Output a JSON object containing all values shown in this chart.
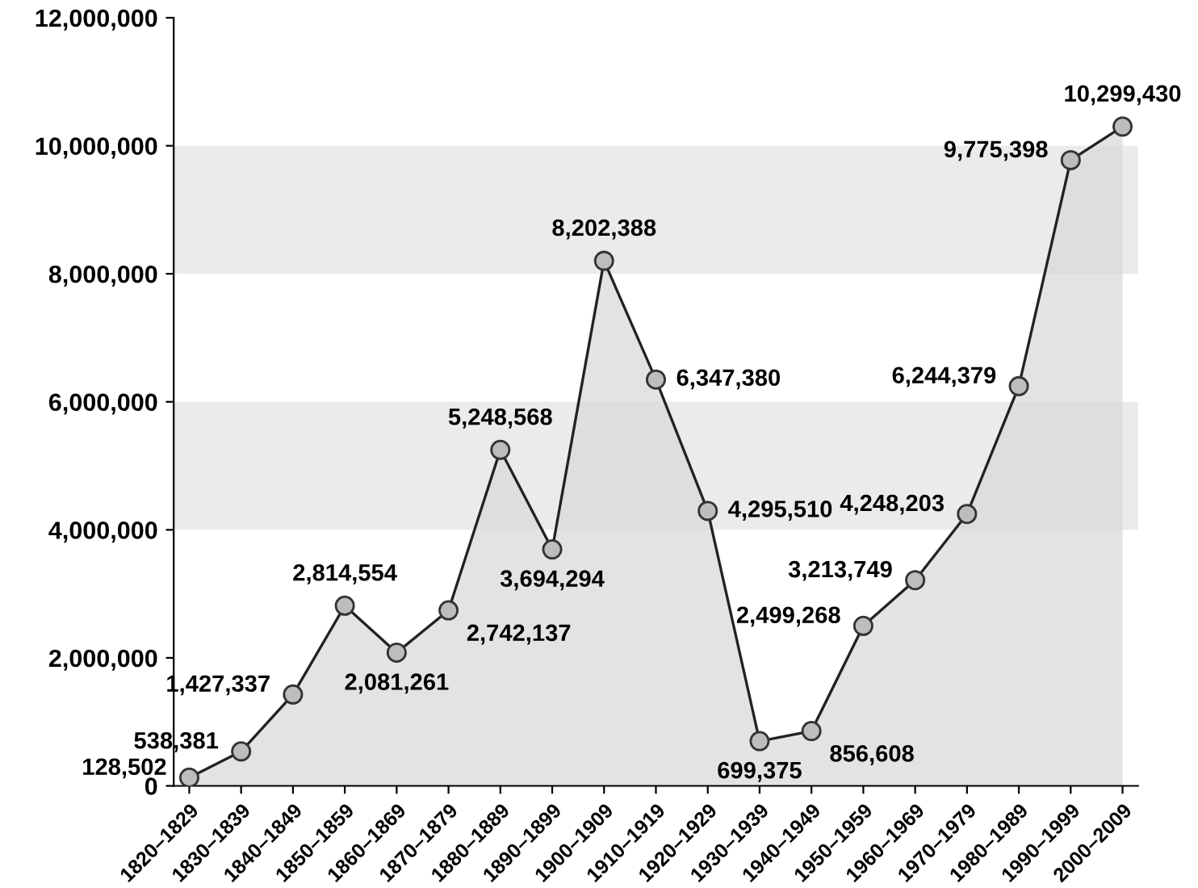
{
  "chart_data": {
    "type": "area",
    "categories": [
      "1820–1829",
      "1830–1839",
      "1840–1849",
      "1850–1859",
      "1860–1869",
      "1870–1879",
      "1880–1889",
      "1890–1899",
      "1900–1909",
      "1910–1919",
      "1920–1929",
      "1930–1939",
      "1940–1949",
      "1950–1959",
      "1960–1969",
      "1970–1979",
      "1980–1989",
      "1990–1999",
      "2000–2009"
    ],
    "series": [
      {
        "color": "#d9d9d9",
        "values": [
          128502,
          538381,
          1427337,
          2814554,
          2081261,
          2742137,
          5248568,
          3694294,
          8202388,
          6347380,
          4295510,
          699375,
          856608,
          2499268,
          3213749,
          4248203,
          6244379,
          9775398,
          10299430
        ],
        "value_labels": [
          "128,502",
          "538,381",
          "1,427,337",
          "2,814,554",
          "2,081,261",
          "2,742,137",
          "5,248,568",
          "3,694,294",
          "8,202,388",
          "6,347,380",
          "4,295,510",
          "699,375",
          "856,608",
          "2,499,268",
          "3,213,749",
          "4,248,203",
          "6,244,379",
          "9,775,398",
          "10,299,430"
        ]
      }
    ],
    "ylim": [
      0,
      12000000
    ],
    "yticks": [
      {
        "value": 0,
        "label": "0"
      },
      {
        "value": 2000000,
        "label": "2,000,000"
      },
      {
        "value": 4000000,
        "label": "4,000,000"
      },
      {
        "value": 6000000,
        "label": "6,000,000"
      },
      {
        "value": 8000000,
        "label": "8,000,000"
      },
      {
        "value": 10000000,
        "label": "10,000,000"
      },
      {
        "value": 12000000,
        "label": "12,000,000"
      }
    ],
    "bands": [
      {
        "axis": "y",
        "from": 4000000,
        "to": 6000000,
        "color": "#ebebeb"
      },
      {
        "axis": "y",
        "from": 8000000,
        "to": 10000000,
        "color": "#ebebeb"
      }
    ],
    "marker": "circle",
    "grid": false,
    "legend": false
  }
}
